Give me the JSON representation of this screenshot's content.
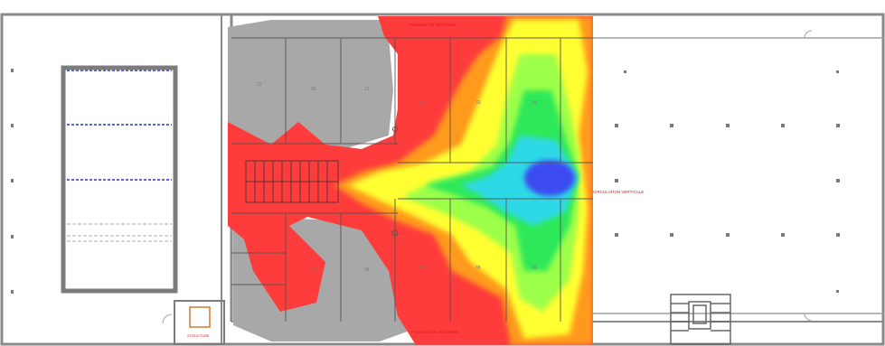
{
  "labels": {
    "top_corridor": "PASSAGE DE SECOURS",
    "bottom_corridor": "PASSAGE DE SECOURS",
    "right_hall": "CIRCULATION VERTICALE",
    "bottom_left_room": "STRUCTURE"
  },
  "rooms": [
    "29",
    "30",
    "31",
    "32",
    "33",
    "34",
    "35",
    "36",
    "37",
    "38",
    "39"
  ],
  "heatmap_colors": {
    "low": "#ff3c3c",
    "orange": "#ff9a1a",
    "yellow": "#ffff33",
    "light_green": "#9cff4a",
    "green": "#2ee85a",
    "cyan": "#2fd9e6",
    "blue": "#3a4cf0",
    "no_coverage": "#a8a8a8"
  }
}
